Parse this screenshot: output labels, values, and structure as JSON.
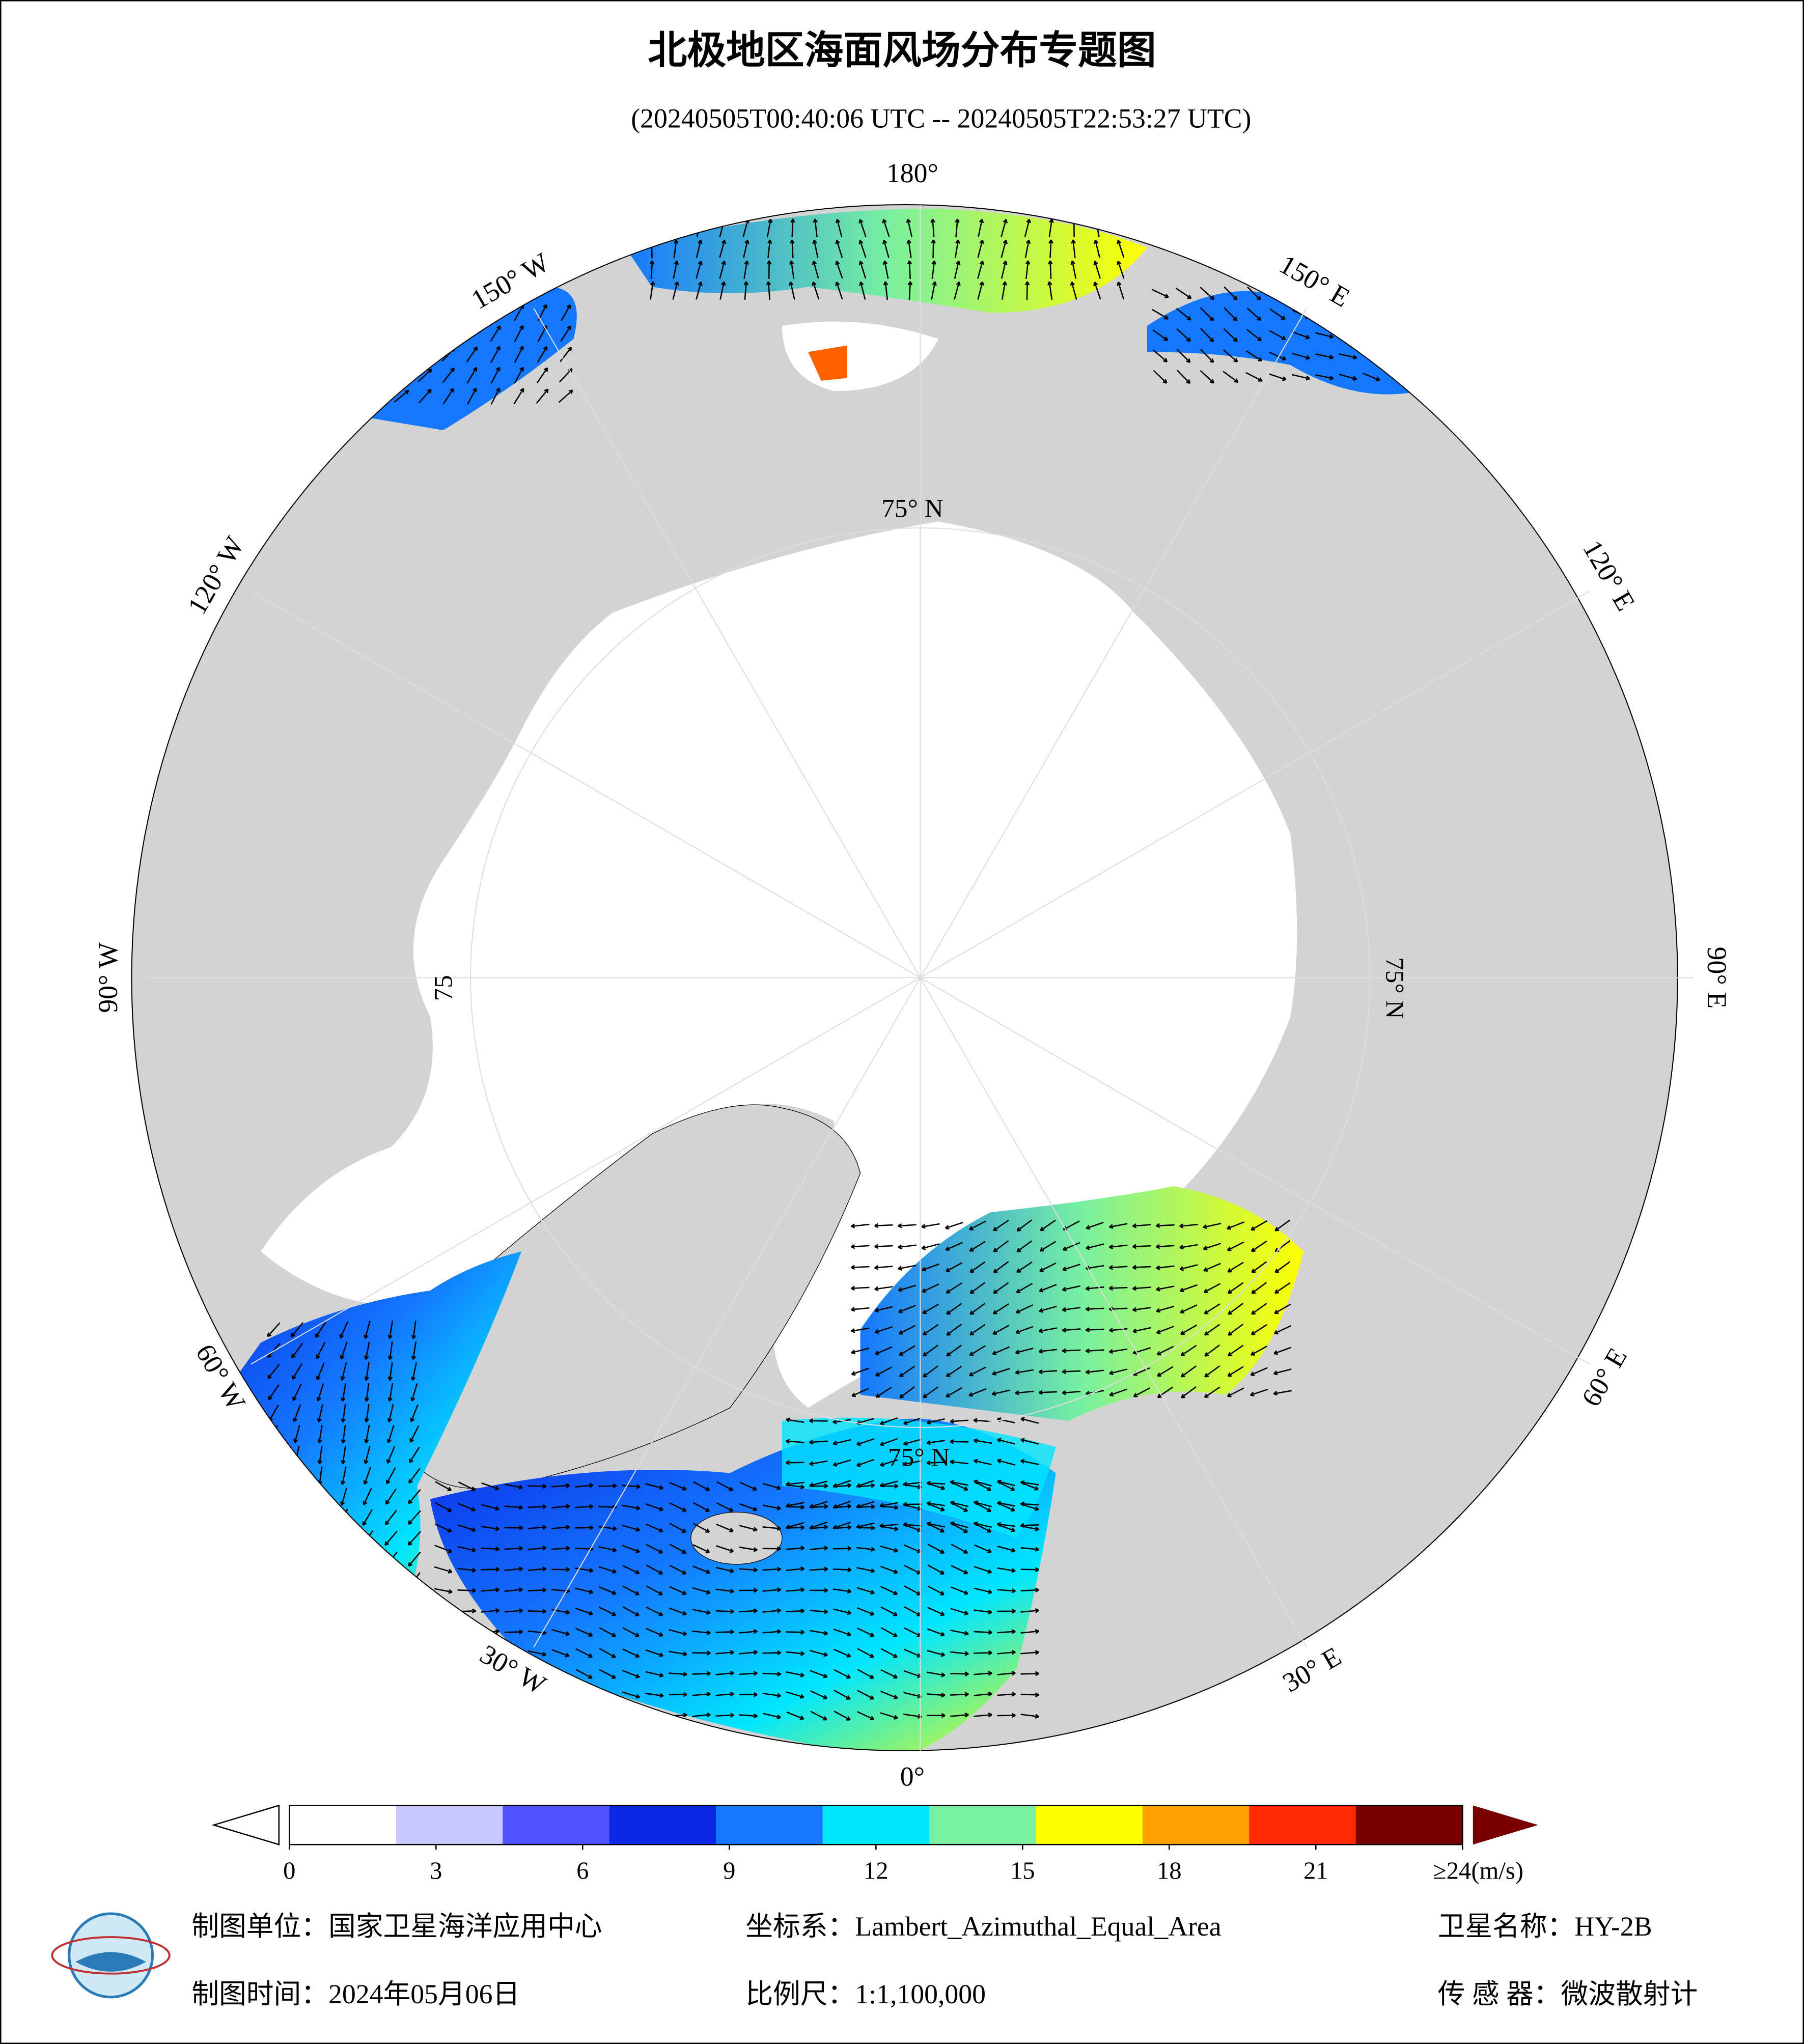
{
  "header": {
    "title": "北极地区海面风场分布专题图",
    "subtitle": "(20240505T00:40:06 UTC -- 20240505T22:53:27 UTC)"
  },
  "map": {
    "meridians": [
      {
        "lon": 180,
        "label": "180°"
      },
      {
        "lon": 150,
        "label": "150° E"
      },
      {
        "lon": 120,
        "label": "120° E"
      },
      {
        "lon": 90,
        "label": "90° E"
      },
      {
        "lon": 60,
        "label": "60° E"
      },
      {
        "lon": 30,
        "label": "30° E"
      },
      {
        "lon": 0,
        "label": "0°"
      },
      {
        "lon": -30,
        "label": "30° W"
      },
      {
        "lon": -60,
        "label": "60° W"
      },
      {
        "lon": -90,
        "label": "90° W"
      },
      {
        "lon": -120,
        "label": "120° W"
      },
      {
        "lon": -150,
        "label": "150° W"
      }
    ],
    "parallel_labels": [
      "75° N",
      "75° N",
      "75° N",
      "75"
    ]
  },
  "colorbar": {
    "lim": [
      0,
      24
    ],
    "ticks": [
      0,
      3,
      6,
      9,
      12,
      15,
      18,
      21,
      {
        "value": 24,
        "label": "≥24(m/s)"
      }
    ],
    "colors": [
      "#ffffff",
      "#c8c8ff",
      "#5050ff",
      "#0a28e6",
      "#1478ff",
      "#00e6ff",
      "#78f0a0",
      "#ffff00",
      "#ffa000",
      "#ff2800",
      "#780000"
    ]
  },
  "footer": {
    "unit": "制图单位：国家卫星海洋应用中心",
    "crs": "坐标系：Lambert_Azimuthal_Equal_Area",
    "satellite": "卫星名称：HY-2B",
    "date": "制图时间：2024年05月06日",
    "scale": "比例尺：1:1,100,000",
    "sensor": "传 感 器：微波散射计"
  }
}
